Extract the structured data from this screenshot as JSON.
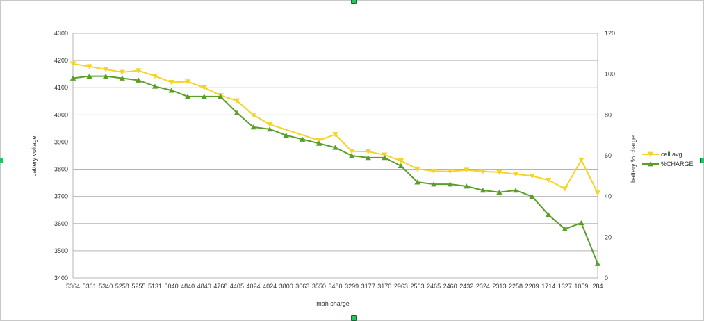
{
  "chart_data": {
    "type": "line",
    "title": "",
    "xlabel": "mah charge",
    "ylabel": "battery voltage",
    "y2label": "battery % charge",
    "ylim": [
      3400,
      4300
    ],
    "y_ticks": [
      3400,
      3500,
      3600,
      3700,
      3800,
      3900,
      4000,
      4100,
      4200,
      4300
    ],
    "y2lim": [
      0,
      120
    ],
    "y2_ticks": [
      0,
      20,
      40,
      60,
      80,
      100,
      120
    ],
    "grid": true,
    "legend_position": "right",
    "categories": [
      "5364",
      "5361",
      "5340",
      "5258",
      "5255",
      "5131",
      "5040",
      "4840",
      "4840",
      "4768",
      "4405",
      "4024",
      "4024",
      "3800",
      "3663",
      "3550",
      "3480",
      "3299",
      "3177",
      "3170",
      "2963",
      "2563",
      "2465",
      "2460",
      "2432",
      "2324",
      "2313",
      "2258",
      "2209",
      "1714",
      "1327",
      "1059",
      "284"
    ],
    "series": [
      {
        "name": "cell avg",
        "axis": "left",
        "color": "#f5d327",
        "marker": "triangle-down",
        "values": [
          4188,
          4178,
          4167,
          4157,
          4163,
          4143,
          4120,
          4122,
          4100,
          4072,
          4052,
          4000,
          3965,
          null,
          null,
          3906,
          3928,
          3866,
          3865,
          3853,
          3831,
          3801,
          3793,
          3792,
          3797,
          3792,
          3789,
          3782,
          3775,
          3760,
          3728,
          3834,
          3713
        ]
      },
      {
        "name": "%CHARGE",
        "axis": "right",
        "color": "#5a9e2a",
        "marker": "triangle-up",
        "values": [
          98,
          99,
          99,
          98,
          97,
          94,
          92,
          89,
          89,
          89,
          81,
          74,
          73,
          70,
          68,
          66,
          64,
          60,
          59,
          59,
          55,
          47,
          46,
          46,
          45,
          43,
          42,
          43,
          40,
          31,
          24,
          27,
          7
        ]
      }
    ]
  }
}
